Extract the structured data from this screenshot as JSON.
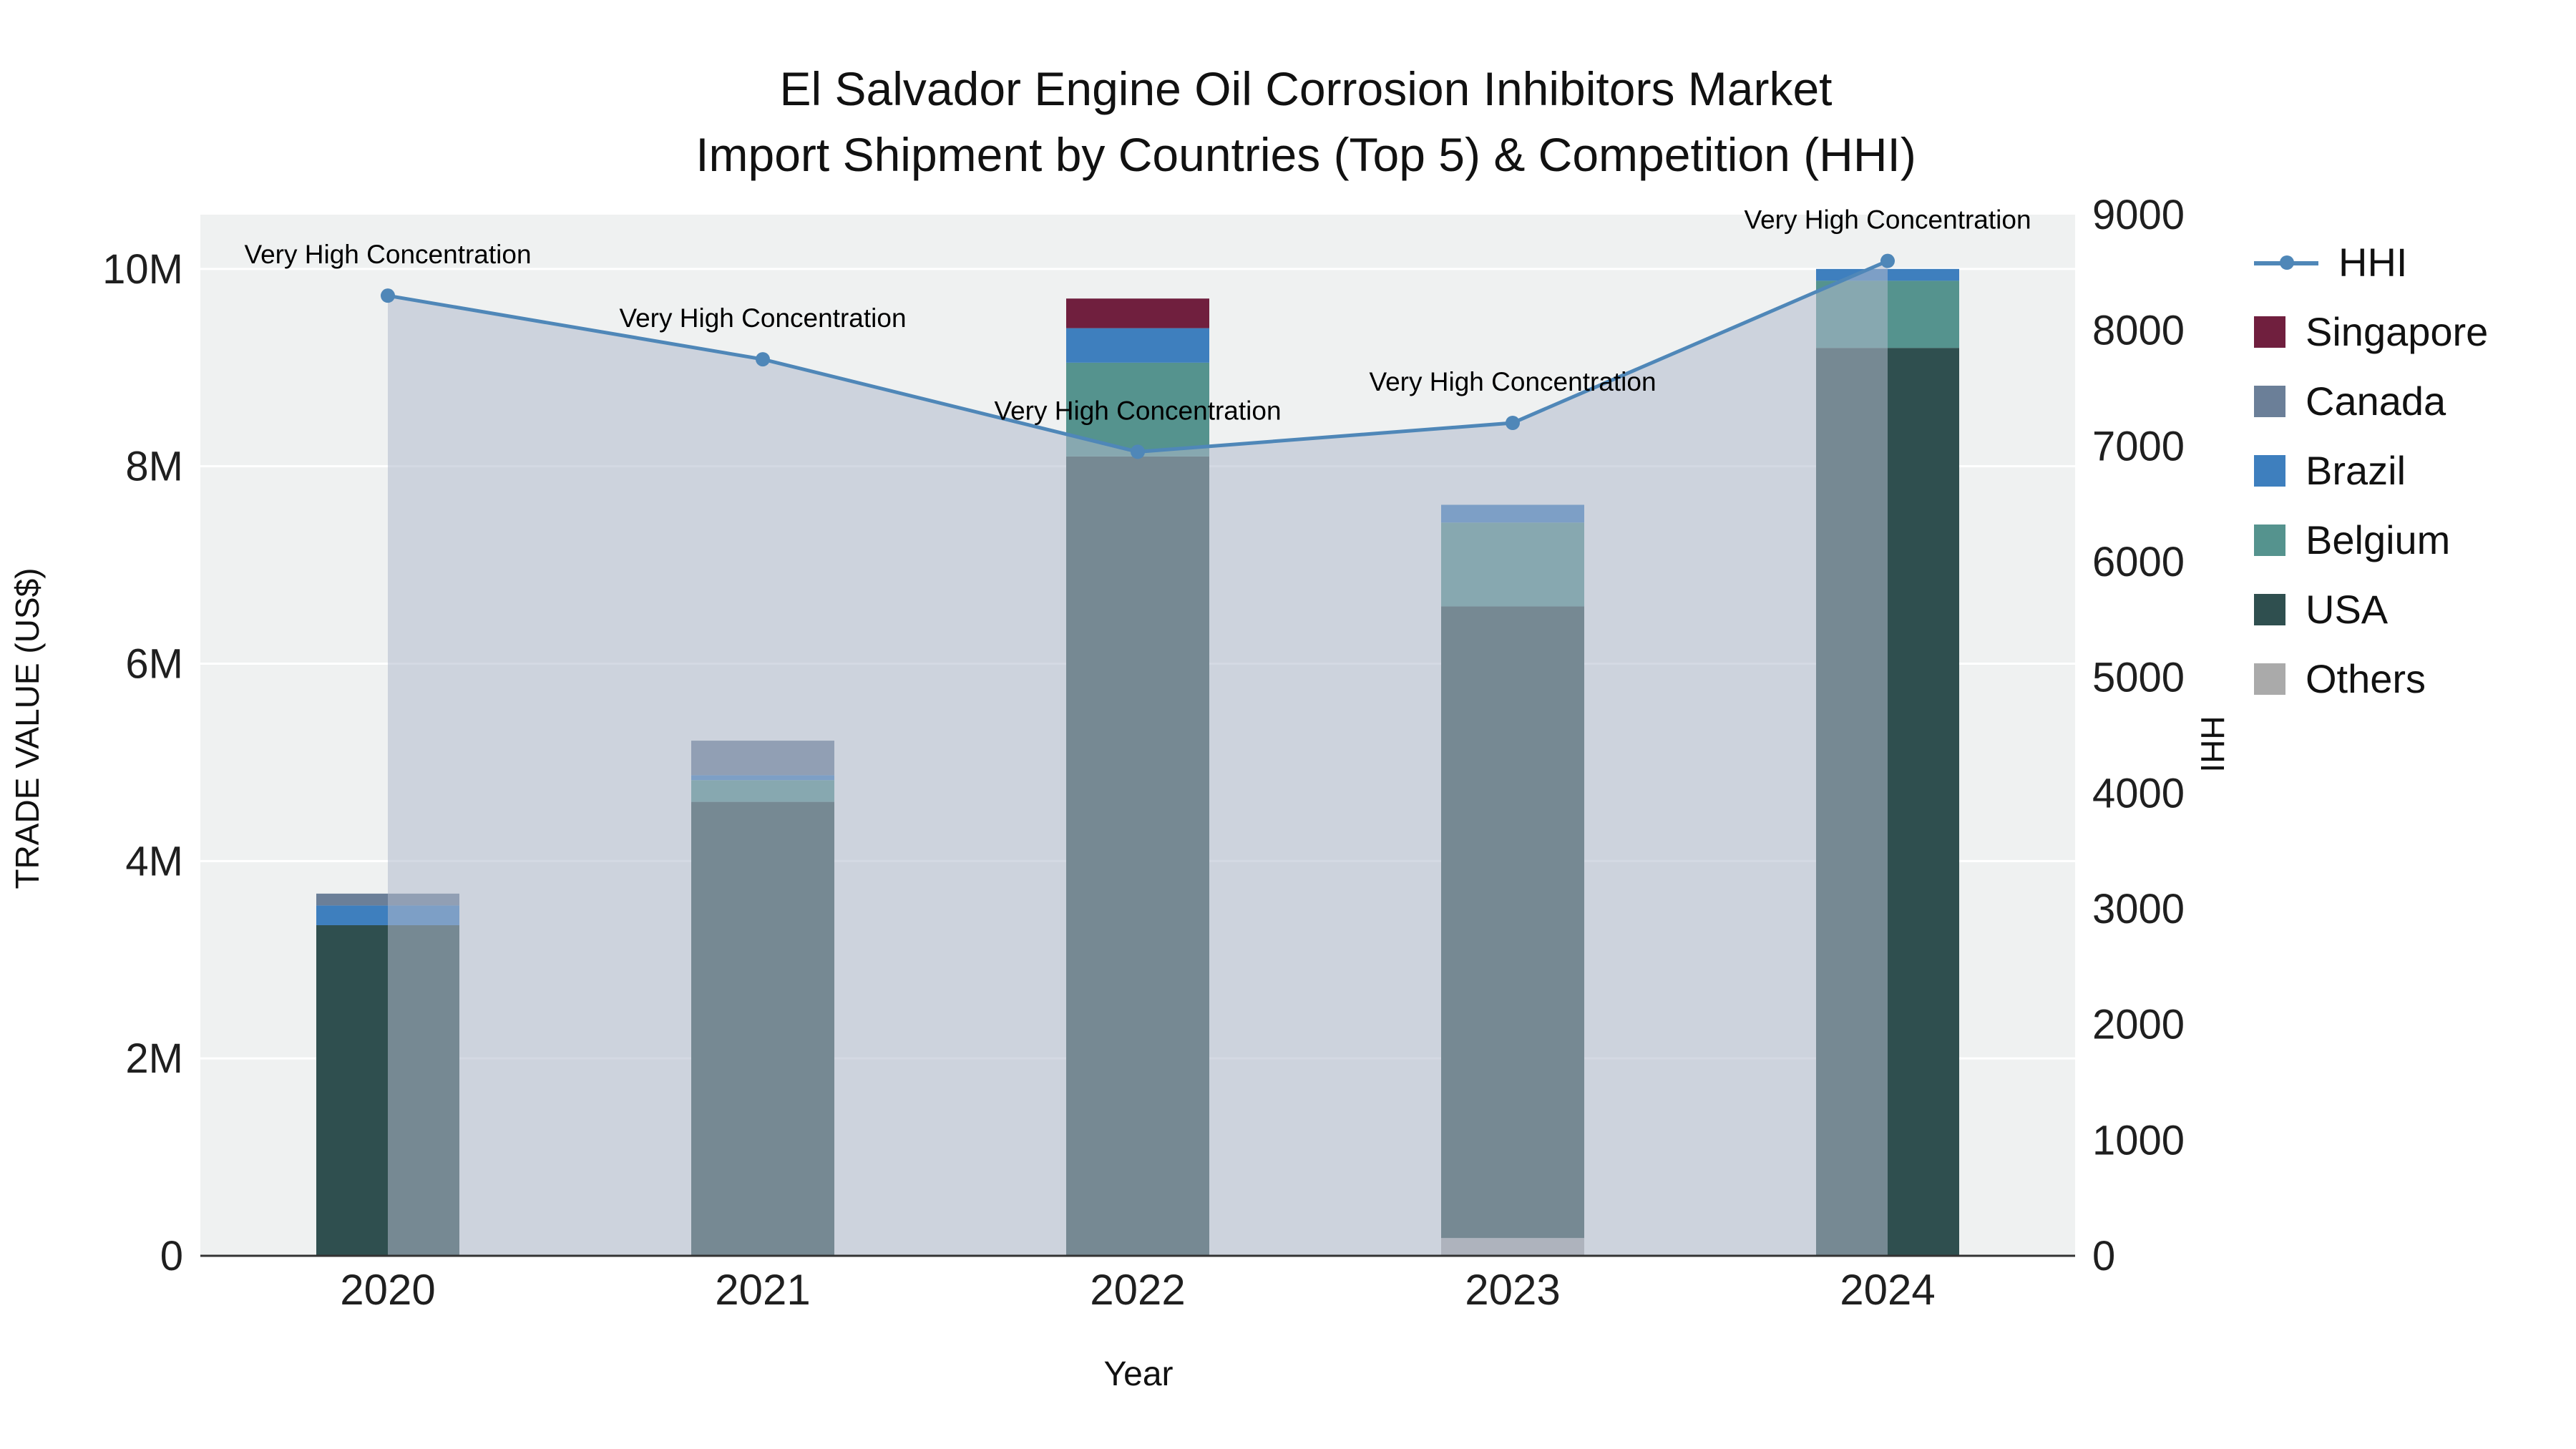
{
  "title": {
    "line1": "El Salvador Engine Oil Corrosion Inhibitors Market",
    "line2": "Import Shipment by Countries (Top 5) & Competition (HHI)"
  },
  "axes": {
    "x_label": "Year",
    "y_left_label": "TRADE VALUE (US$)",
    "y_right_label": "HHI",
    "y_left_ticks": [
      {
        "value": 0,
        "label": "0"
      },
      {
        "value": 2000000,
        "label": "2M"
      },
      {
        "value": 4000000,
        "label": "4M"
      },
      {
        "value": 6000000,
        "label": "6M"
      },
      {
        "value": 8000000,
        "label": "8M"
      },
      {
        "value": 10000000,
        "label": "10M"
      }
    ],
    "y_right_ticks": [
      {
        "value": 0,
        "label": "0"
      },
      {
        "value": 1000,
        "label": "1000"
      },
      {
        "value": 2000,
        "label": "2000"
      },
      {
        "value": 3000,
        "label": "3000"
      },
      {
        "value": 4000,
        "label": "4000"
      },
      {
        "value": 5000,
        "label": "5000"
      },
      {
        "value": 6000,
        "label": "6000"
      },
      {
        "value": 7000,
        "label": "7000"
      },
      {
        "value": 8000,
        "label": "8000"
      },
      {
        "value": 9000,
        "label": "9000"
      }
    ]
  },
  "chart_data": {
    "type": "bar",
    "subtype": "stacked-bar-with-line",
    "categories": [
      "2020",
      "2021",
      "2022",
      "2023",
      "2024"
    ],
    "y_left_range": [
      0,
      10550000
    ],
    "y_right_range": [
      0,
      9000
    ],
    "grid": true,
    "plot_bg": "#eff1f1",
    "grid_color": "#ffffff",
    "series": [
      {
        "name": "Others",
        "color": "#aaaaaa",
        "values": [
          0,
          0,
          0,
          180000,
          0
        ]
      },
      {
        "name": "USA",
        "color": "#2f4f4f",
        "values": [
          3350000,
          4600000,
          8100000,
          6400000,
          9200000
        ]
      },
      {
        "name": "Belgium",
        "color": "#55938e",
        "values": [
          0,
          220000,
          950000,
          850000,
          680000
        ]
      },
      {
        "name": "Brazil",
        "color": "#3e7fbe",
        "values": [
          200000,
          50000,
          350000,
          180000,
          120000
        ]
      },
      {
        "name": "Canada",
        "color": "#6b7f98",
        "values": [
          120000,
          350000,
          0,
          0,
          0
        ]
      },
      {
        "name": "Singapore",
        "color": "#701f3e",
        "values": [
          0,
          0,
          300000,
          0,
          0
        ]
      }
    ],
    "line_series": {
      "name": "HHI",
      "color": "#4f87b8",
      "area_fill": "rgba(176,185,204,0.55)",
      "values": [
        8300,
        7750,
        6950,
        7200,
        8600
      ]
    },
    "annotations": [
      {
        "x_index": 0,
        "text": "Very High Concentration"
      },
      {
        "x_index": 1,
        "text": "Very High Concentration"
      },
      {
        "x_index": 2,
        "text": "Very High Concentration"
      },
      {
        "x_index": 3,
        "text": "Very High Concentration"
      },
      {
        "x_index": 4,
        "text": "Very High Concentration"
      }
    ]
  },
  "legend": {
    "position": "right",
    "items": [
      {
        "label": "HHI",
        "type": "line",
        "color": "#4f87b8"
      },
      {
        "label": "Singapore",
        "type": "square",
        "color": "#701f3e"
      },
      {
        "label": "Canada",
        "type": "square",
        "color": "#6b7f98"
      },
      {
        "label": "Brazil",
        "type": "square",
        "color": "#3e7fbe"
      },
      {
        "label": "Belgium",
        "type": "square",
        "color": "#55938e"
      },
      {
        "label": "USA",
        "type": "square",
        "color": "#2f4f4f"
      },
      {
        "label": "Others",
        "type": "square",
        "color": "#aaaaaa"
      }
    ]
  }
}
